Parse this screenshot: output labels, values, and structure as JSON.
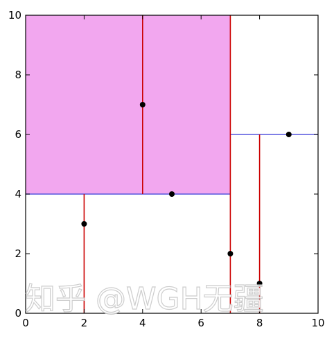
{
  "chart_data": {
    "type": "scatter",
    "title": "",
    "xlabel": "",
    "ylabel": "",
    "xlim": [
      0,
      10
    ],
    "ylim": [
      0,
      10
    ],
    "x_ticks": [
      "0",
      "2",
      "4",
      "6",
      "8",
      "10"
    ],
    "y_ticks": [
      "0",
      "2",
      "4",
      "6",
      "8",
      "10"
    ],
    "grid": false,
    "points": [
      {
        "x": 2,
        "y": 3
      },
      {
        "x": 4,
        "y": 7
      },
      {
        "x": 5,
        "y": 4
      },
      {
        "x": 7,
        "y": 2
      },
      {
        "x": 8,
        "y": 1
      },
      {
        "x": 9,
        "y": 6
      }
    ],
    "highlight_region": {
      "x": [
        0,
        7
      ],
      "y": [
        4,
        10
      ],
      "color": "#f2a7ef"
    },
    "vertical_splits": [
      {
        "x": 7,
        "y": [
          0,
          10
        ]
      },
      {
        "x": 4,
        "y": [
          4,
          10
        ]
      },
      {
        "x": 2,
        "y": [
          0,
          4
        ]
      },
      {
        "x": 8,
        "y": [
          0,
          6
        ]
      }
    ],
    "horizontal_splits": [
      {
        "y": 4,
        "x": [
          0,
          7
        ]
      },
      {
        "y": 6,
        "x": [
          7,
          10
        ]
      }
    ],
    "colors": {
      "vertical_split": "#cc0000",
      "horizontal_split": "#5555dd",
      "point": "#000000",
      "axis": "#000000"
    }
  },
  "watermark": {
    "text": "知乎 @WGH无疆"
  }
}
